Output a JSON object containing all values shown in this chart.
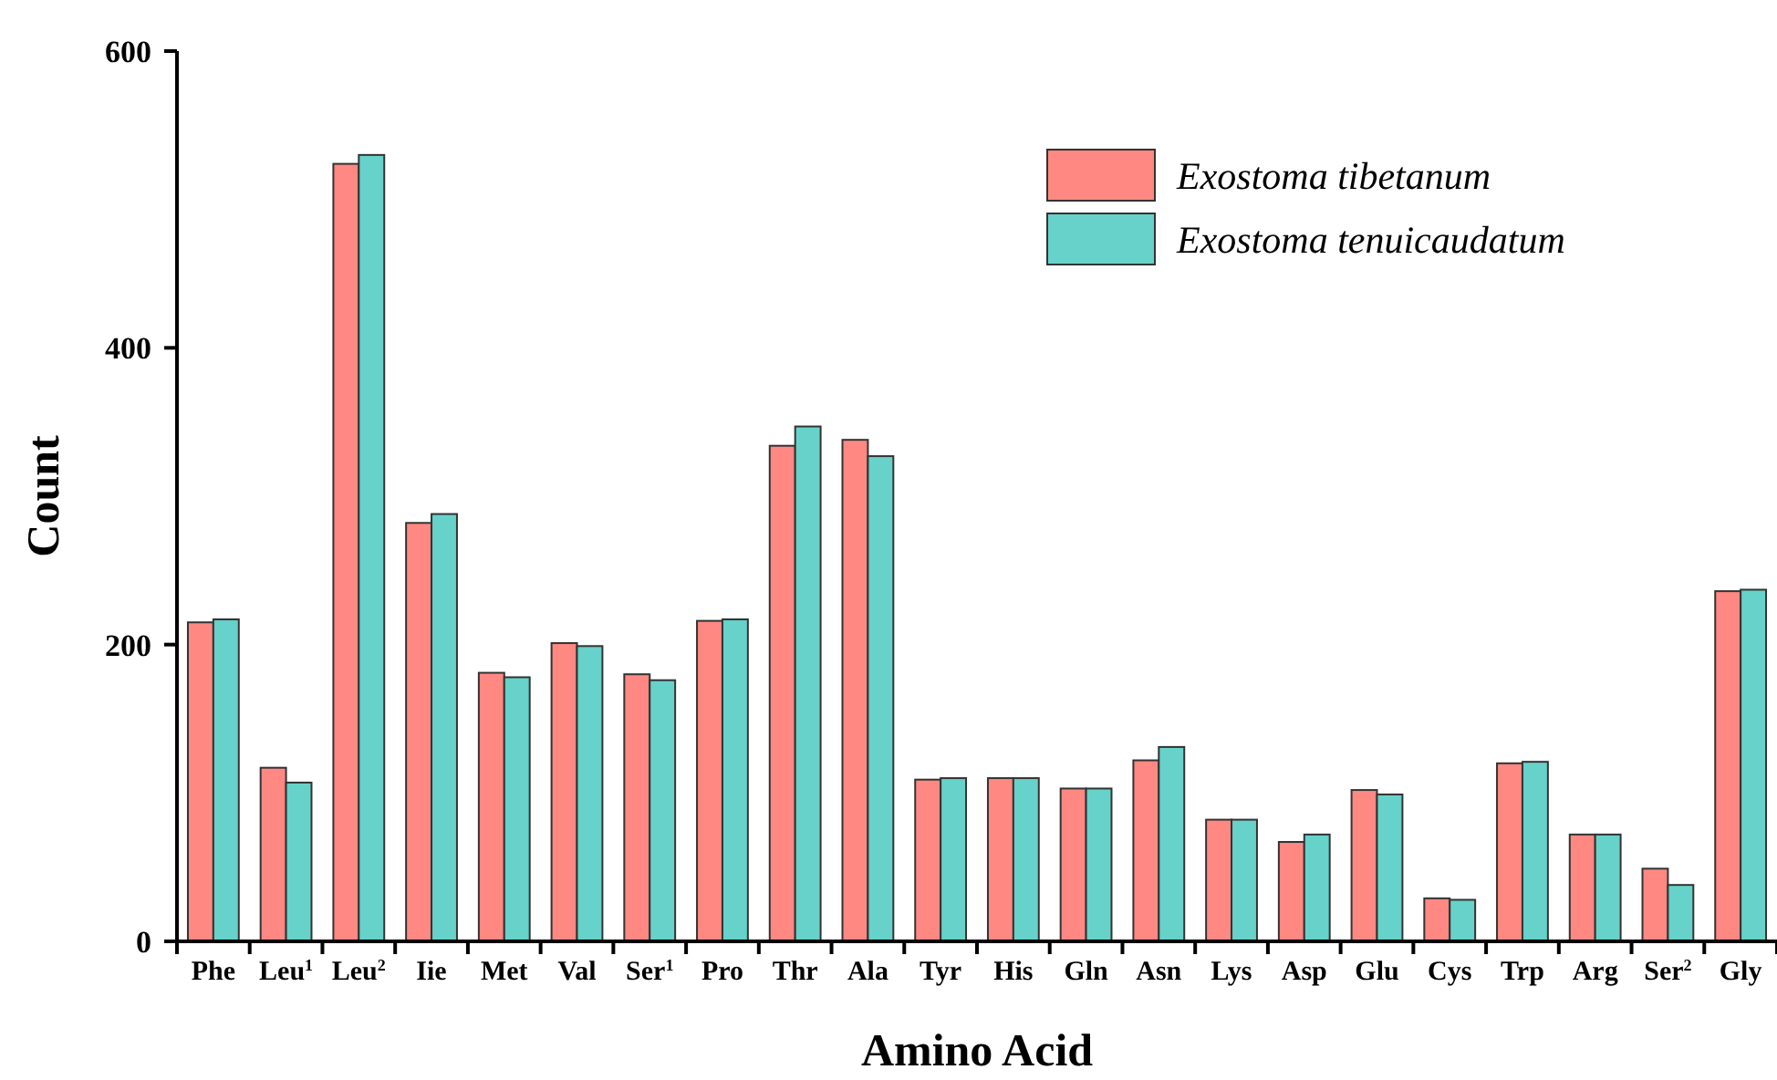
{
  "chart_data": {
    "type": "bar",
    "xlabel": "Amino Acid",
    "ylabel": "Count",
    "categories": [
      "Phe",
      "Leu$^{1}$",
      "Leu$^{2}$",
      "Iie",
      "Met",
      "Val",
      "Ser$^{1}$",
      "Pro",
      "Thr",
      "Ala",
      "Tyr",
      "His",
      "Gln",
      "Asn",
      "Lys",
      "Asp",
      "Glu",
      "Cys",
      "Trp",
      "Arg",
      "Ser$^{2}$",
      "Gly"
    ],
    "series": [
      {
        "name": "Exostoma tibetanum",
        "color": "#ff8882",
        "values": [
          215,
          117,
          524,
          282,
          181,
          201,
          180,
          216,
          334,
          338,
          109,
          110,
          103,
          122,
          82,
          67,
          102,
          29,
          120,
          72,
          49,
          236
        ]
      },
      {
        "name": "Exostoma tenuicaudatum",
        "color": "#66d2ca",
        "values": [
          217,
          107,
          530,
          288,
          178,
          199,
          176,
          217,
          347,
          327,
          110,
          110,
          103,
          131,
          82,
          72,
          99,
          28,
          121,
          72,
          38,
          237
        ]
      }
    ],
    "ylim": [
      0,
      600
    ],
    "yticks": [
      0,
      200,
      400,
      600
    ],
    "grid": false,
    "legend": "top right"
  }
}
